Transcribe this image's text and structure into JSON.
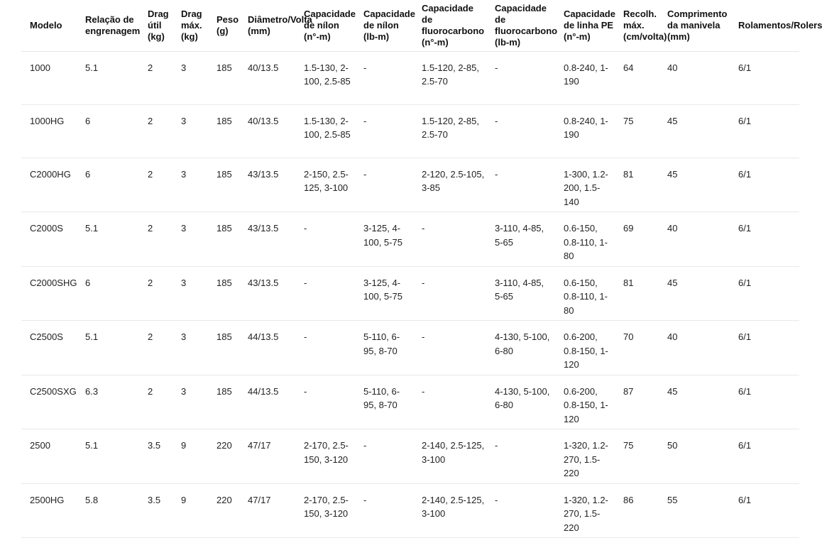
{
  "colors": {
    "background": "#ffffff",
    "text": "#222222",
    "header_text": "#111111",
    "divider": "#e9e9e9"
  },
  "table": {
    "headers": [
      "Modelo",
      "Relação de engrenagem",
      "Drag útil (kg)",
      "Drag máx. (kg)",
      "Peso (g)",
      "Diâmetro/Volta (mm)",
      "Capacidade de nílon (n°-m)",
      "Capacidade de nílon (lb-m)",
      "Capacidade de fluorocarbono (n°-m)",
      "Capacidade de fluorocarbono (lb-m)",
      "Capacidade de linha PE (n°-m)",
      "Recolh. máx. (cm/volta)",
      "Comprimento da manivela (mm)",
      "Rolamentos/Rolers"
    ],
    "rows": [
      [
        "1000",
        "5.1",
        "2",
        "3",
        "185",
        "40/13.5",
        "1.5-130, 2-100, 2.5-85",
        "-",
        "1.5-120, 2-85, 2.5-70",
        "-",
        "0.8-240, 1-190",
        "64",
        "40",
        "6/1"
      ],
      [
        "1000HG",
        "6",
        "2",
        "3",
        "185",
        "40/13.5",
        "1.5-130, 2-100, 2.5-85",
        "-",
        "1.5-120, 2-85, 2.5-70",
        "-",
        "0.8-240, 1-190",
        "75",
        "45",
        "6/1"
      ],
      [
        "C2000HG",
        "6",
        "2",
        "3",
        "185",
        "43/13.5",
        "2-150, 2.5-125, 3-100",
        "-",
        "2-120, 2.5-105, 3-85",
        "-",
        "1-300, 1.2-200, 1.5-140",
        "81",
        "45",
        "6/1"
      ],
      [
        "C2000S",
        "5.1",
        "2",
        "3",
        "185",
        "43/13.5",
        "-",
        "3-125, 4-100, 5-75",
        "-",
        "3-110, 4-85, 5-65",
        "0.6-150, 0.8-110, 1-80",
        "69",
        "40",
        "6/1"
      ],
      [
        "C2000SHG",
        "6",
        "2",
        "3",
        "185",
        "43/13.5",
        "-",
        "3-125, 4-100, 5-75",
        "-",
        "3-110, 4-85, 5-65",
        "0.6-150, 0.8-110, 1-80",
        "81",
        "45",
        "6/1"
      ],
      [
        "C2500S",
        "5.1",
        "2",
        "3",
        "185",
        "44/13.5",
        "-",
        "5-110, 6-95, 8-70",
        "-",
        "4-130, 5-100, 6-80",
        "0.6-200, 0.8-150, 1-120",
        "70",
        "40",
        "6/1"
      ],
      [
        "C2500SXG",
        "6.3",
        "2",
        "3",
        "185",
        "44/13.5",
        "-",
        "5-110, 6-95, 8-70",
        "-",
        "4-130, 5-100, 6-80",
        "0.6-200, 0.8-150, 1-120",
        "87",
        "45",
        "6/1"
      ],
      [
        "2500",
        "5.1",
        "3.5",
        "9",
        "220",
        "47/17",
        "2-170, 2.5-150, 3-120",
        "-",
        "2-140, 2.5-125, 3-100",
        "-",
        "1-320, 1.2-270, 1.5-220",
        "75",
        "50",
        "6/1"
      ],
      [
        "2500HG",
        "5.8",
        "3.5",
        "9",
        "220",
        "47/17",
        "2-170, 2.5-150, 3-120",
        "-",
        "2-140, 2.5-125, 3-100",
        "-",
        "1-320, 1.2-270, 1.5-220",
        "86",
        "55",
        "6/1"
      ]
    ]
  },
  "chart_data": {
    "type": "table",
    "title": "",
    "columns": [
      "Modelo",
      "Relação de engrenagem",
      "Drag útil (kg)",
      "Drag máx. (kg)",
      "Peso (g)",
      "Diâmetro/Volta (mm)",
      "Capacidade de nílon (n°-m)",
      "Capacidade de nílon (lb-m)",
      "Capacidade de fluorocarbono (n°-m)",
      "Capacidade de fluorocarbono (lb-m)",
      "Capacidade de linha PE (n°-m)",
      "Recolh. máx. (cm/volta)",
      "Comprimento da manivela (mm)",
      "Rolamentos/Rolers"
    ],
    "models": [
      "1000",
      "1000HG",
      "C2000HG",
      "C2000S",
      "C2000SHG",
      "C2500S",
      "C2500SXG",
      "2500",
      "2500HG"
    ],
    "gear_ratio": [
      5.1,
      6,
      6,
      5.1,
      6,
      5.1,
      6.3,
      5.1,
      5.8
    ],
    "drag_util_kg": [
      2,
      2,
      2,
      2,
      2,
      2,
      2,
      3.5,
      3.5
    ],
    "drag_max_kg": [
      3,
      3,
      3,
      3,
      3,
      3,
      3,
      9,
      9
    ],
    "peso_g": [
      185,
      185,
      185,
      185,
      185,
      185,
      185,
      220,
      220
    ],
    "recolh_max_cm": [
      64,
      75,
      81,
      69,
      81,
      70,
      87,
      75,
      86
    ],
    "manivela_mm": [
      40,
      45,
      45,
      40,
      45,
      40,
      45,
      50,
      55
    ]
  }
}
